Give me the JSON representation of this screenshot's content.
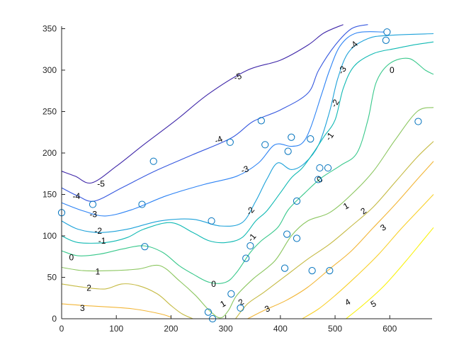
{
  "chart_data": {
    "type": "contour",
    "title": "",
    "xlabel": "",
    "ylabel": "",
    "xlim": [
      0,
      680
    ],
    "ylim": [
      0,
      355
    ],
    "xticks": [
      0,
      100,
      200,
      300,
      400,
      500,
      600
    ],
    "yticks": [
      0,
      50,
      100,
      150,
      200,
      250,
      300,
      350
    ],
    "grid": false,
    "box": "left-bottom",
    "marker_color": "#0072bd",
    "levels": [
      {
        "level": -5,
        "label": "-5",
        "color": "#3e26a8",
        "points": [
          [
            0,
            178
          ],
          [
            25,
            172
          ],
          [
            55,
            164
          ],
          [
            100,
            184
          ],
          [
            150,
            210
          ],
          [
            210,
            240
          ],
          [
            270,
            272
          ],
          [
            340,
            300
          ],
          [
            400,
            312
          ],
          [
            450,
            330
          ],
          [
            480,
            345
          ],
          [
            515,
            355
          ]
        ]
      },
      {
        "level": -4,
        "label": "-4",
        "color": "#3658df",
        "points": [
          [
            0,
            158
          ],
          [
            30,
            148
          ],
          [
            60,
            142
          ],
          [
            110,
            158
          ],
          [
            170,
            178
          ],
          [
            240,
            198
          ],
          [
            310,
            218
          ],
          [
            350,
            238
          ],
          [
            400,
            252
          ],
          [
            450,
            272
          ],
          [
            470,
            300
          ],
          [
            500,
            330
          ],
          [
            530,
            350
          ],
          [
            560,
            355
          ]
        ]
      },
      {
        "level": -3,
        "label": "-3",
        "color": "#2c82f4",
        "points": [
          [
            0,
            140
          ],
          [
            40,
            130
          ],
          [
            80,
            124
          ],
          [
            130,
            132
          ],
          [
            190,
            148
          ],
          [
            260,
            162
          ],
          [
            320,
            172
          ],
          [
            360,
            188
          ],
          [
            390,
            210
          ],
          [
            420,
            208
          ],
          [
            440,
            212
          ],
          [
            455,
            230
          ],
          [
            475,
            270
          ],
          [
            490,
            300
          ],
          [
            510,
            330
          ],
          [
            540,
            345
          ],
          [
            590,
            346
          ]
        ]
      },
      {
        "level": -2,
        "label": "-2",
        "color": "#1ca1d9",
        "points": [
          [
            0,
            118
          ],
          [
            30,
            108
          ],
          [
            70,
            104
          ],
          [
            120,
            108
          ],
          [
            180,
            118
          ],
          [
            240,
            120
          ],
          [
            290,
            112
          ],
          [
            330,
            116
          ],
          [
            355,
            142
          ],
          [
            375,
            168
          ],
          [
            395,
            188
          ],
          [
            420,
            180
          ],
          [
            445,
            188
          ],
          [
            470,
            210
          ],
          [
            490,
            250
          ],
          [
            505,
            290
          ],
          [
            525,
            322
          ],
          [
            560,
            338
          ],
          [
            600,
            342
          ],
          [
            680,
            344
          ]
        ]
      },
      {
        "level": -1,
        "label": "-1",
        "color": "#10b9b3",
        "points": [
          [
            0,
            100
          ],
          [
            30,
            92
          ],
          [
            80,
            92
          ],
          [
            120,
            98
          ],
          [
            150,
            108
          ],
          [
            200,
            116
          ],
          [
            240,
            104
          ],
          [
            270,
            94
          ],
          [
            300,
            92
          ],
          [
            330,
            98
          ],
          [
            355,
            118
          ],
          [
            375,
            130
          ],
          [
            400,
            152
          ],
          [
            420,
            170
          ],
          [
            440,
            182
          ],
          [
            460,
            200
          ],
          [
            480,
            220
          ],
          [
            500,
            240
          ],
          [
            515,
            278
          ],
          [
            535,
            305
          ],
          [
            570,
            320
          ],
          [
            610,
            326
          ],
          [
            640,
            330
          ],
          [
            680,
            334
          ]
        ]
      },
      {
        "level": 0,
        "label": "0",
        "color": "#38c88b",
        "points": [
          [
            0,
            82
          ],
          [
            30,
            76
          ],
          [
            70,
            78
          ],
          [
            110,
            84
          ],
          [
            150,
            88
          ],
          [
            185,
            80
          ],
          [
            215,
            64
          ],
          [
            240,
            54
          ],
          [
            270,
            44
          ],
          [
            300,
            44
          ],
          [
            320,
            56
          ],
          [
            345,
            80
          ],
          [
            365,
            94
          ],
          [
            395,
            110
          ],
          [
            415,
            132
          ],
          [
            445,
            152
          ],
          [
            475,
            170
          ],
          [
            510,
            185
          ],
          [
            540,
            200
          ],
          [
            560,
            240
          ],
          [
            575,
            285
          ],
          [
            600,
            308
          ],
          [
            635,
            314
          ],
          [
            665,
            300
          ],
          [
            680,
            295
          ]
        ]
      },
      {
        "level": 1,
        "label": "1",
        "color": "#8bc65f",
        "points": [
          [
            0,
            62
          ],
          [
            40,
            58
          ],
          [
            90,
            58
          ],
          [
            140,
            60
          ],
          [
            180,
            64
          ],
          [
            215,
            46
          ],
          [
            245,
            28
          ],
          [
            270,
            10
          ],
          [
            290,
            1
          ],
          [
            305,
            10
          ],
          [
            320,
            28
          ],
          [
            350,
            48
          ],
          [
            390,
            70
          ],
          [
            420,
            100
          ],
          [
            450,
            118
          ],
          [
            490,
            128
          ],
          [
            530,
            150
          ],
          [
            570,
            178
          ],
          [
            610,
            216
          ],
          [
            650,
            250
          ],
          [
            680,
            255
          ]
        ]
      },
      {
        "level": 2,
        "label": "2",
        "color": "#c5ba43",
        "points": [
          [
            0,
            42
          ],
          [
            40,
            38
          ],
          [
            80,
            36
          ],
          [
            110,
            42
          ],
          [
            140,
            40
          ],
          [
            175,
            30
          ],
          [
            200,
            16
          ],
          [
            220,
            6
          ],
          [
            240,
            0
          ]
        ]
      },
      {
        "level": 2,
        "label": "",
        "color": "#c5ba43",
        "points": [
          [
            318,
            0
          ],
          [
            340,
            18
          ],
          [
            370,
            32
          ],
          [
            410,
            52
          ],
          [
            450,
            72
          ],
          [
            490,
            90
          ],
          [
            530,
            112
          ],
          [
            570,
            135
          ],
          [
            610,
            165
          ],
          [
            650,
            195
          ],
          [
            680,
            214
          ]
        ]
      },
      {
        "level": 3,
        "label": "3",
        "color": "#f2b638",
        "points": [
          [
            0,
            18
          ],
          [
            40,
            16
          ],
          [
            90,
            14
          ],
          [
            130,
            12
          ],
          [
            180,
            6
          ],
          [
            200,
            2
          ]
        ]
      },
      {
        "level": 3,
        "label": "",
        "color": "#f2b638",
        "points": [
          [
            340,
            0
          ],
          [
            370,
            10
          ],
          [
            410,
            22
          ],
          [
            450,
            38
          ],
          [
            490,
            60
          ],
          [
            530,
            82
          ],
          [
            570,
            110
          ],
          [
            610,
            138
          ],
          [
            650,
            168
          ],
          [
            680,
            190
          ]
        ]
      },
      {
        "level": 4,
        "label": "4",
        "color": "#f8d02a",
        "points": [
          [
            440,
            0
          ],
          [
            470,
            12
          ],
          [
            500,
            28
          ],
          [
            540,
            52
          ],
          [
            580,
            78
          ],
          [
            620,
            108
          ],
          [
            660,
            136
          ],
          [
            680,
            150
          ]
        ]
      },
      {
        "level": 5,
        "label": "5",
        "color": "#f9f20e",
        "points": [
          [
            520,
            0
          ],
          [
            550,
            16
          ],
          [
            590,
            40
          ],
          [
            630,
            70
          ],
          [
            660,
            94
          ],
          [
            680,
            110
          ]
        ]
      }
    ],
    "contour_labels": [
      {
        "text": "-5",
        "x": 72,
        "y": 163,
        "angle": 0
      },
      {
        "text": "-5",
        "x": 322,
        "y": 292,
        "angle": -22
      },
      {
        "text": "-4",
        "x": 27,
        "y": 148,
        "angle": 0
      },
      {
        "text": "-4",
        "x": 287,
        "y": 216,
        "angle": -22
      },
      {
        "text": "-4",
        "x": 534,
        "y": 330,
        "angle": -45
      },
      {
        "text": "-3",
        "x": 58,
        "y": 126,
        "angle": 0
      },
      {
        "text": "-3",
        "x": 335,
        "y": 180,
        "angle": -20
      },
      {
        "text": "-3",
        "x": 513,
        "y": 300,
        "angle": -55
      },
      {
        "text": "-2",
        "x": 67,
        "y": 106,
        "angle": 0
      },
      {
        "text": "-2",
        "x": 345,
        "y": 130,
        "angle": -50
      },
      {
        "text": "-2",
        "x": 500,
        "y": 260,
        "angle": -60
      },
      {
        "text": "-1",
        "x": 74,
        "y": 94,
        "angle": 0
      },
      {
        "text": "-1",
        "x": 348,
        "y": 98,
        "angle": -50
      },
      {
        "text": "-1",
        "x": 490,
        "y": 220,
        "angle": -55
      },
      {
        "text": "0",
        "x": 18,
        "y": 74,
        "angle": 0
      },
      {
        "text": "0",
        "x": 278,
        "y": 42,
        "angle": 0
      },
      {
        "text": "0",
        "x": 472,
        "y": 168,
        "angle": -40
      },
      {
        "text": "0",
        "x": 604,
        "y": 300,
        "angle": 0
      },
      {
        "text": "1",
        "x": 66,
        "y": 57,
        "angle": 0
      },
      {
        "text": "1",
        "x": 295,
        "y": 18,
        "angle": -30
      },
      {
        "text": "1",
        "x": 520,
        "y": 136,
        "angle": -30
      },
      {
        "text": "2",
        "x": 50,
        "y": 37,
        "angle": 0
      },
      {
        "text": "2",
        "x": 328,
        "y": 20,
        "angle": -30
      },
      {
        "text": "2",
        "x": 552,
        "y": 130,
        "angle": -35
      },
      {
        "text": "3",
        "x": 38,
        "y": 13,
        "angle": 0
      },
      {
        "text": "3",
        "x": 376,
        "y": 12,
        "angle": -25
      },
      {
        "text": "3",
        "x": 588,
        "y": 110,
        "angle": -35
      },
      {
        "text": "4",
        "x": 523,
        "y": 20,
        "angle": -30
      },
      {
        "text": "5",
        "x": 570,
        "y": 18,
        "angle": -30
      }
    ],
    "scatter": [
      [
        595,
        346
      ],
      [
        593,
        336
      ],
      [
        652,
        238
      ],
      [
        365,
        239
      ],
      [
        308,
        213
      ],
      [
        372,
        210
      ],
      [
        420,
        219
      ],
      [
        455,
        217
      ],
      [
        414,
        202
      ],
      [
        168,
        190
      ],
      [
        472,
        182
      ],
      [
        487,
        182
      ],
      [
        469,
        168
      ],
      [
        0,
        128
      ],
      [
        57,
        138
      ],
      [
        147,
        138
      ],
      [
        430,
        142
      ],
      [
        274,
        118
      ],
      [
        412,
        102
      ],
      [
        430,
        97
      ],
      [
        152,
        87
      ],
      [
        345,
        88
      ],
      [
        337,
        73
      ],
      [
        408,
        61
      ],
      [
        458,
        58
      ],
      [
        490,
        58
      ],
      [
        310,
        30
      ],
      [
        327,
        13
      ],
      [
        268,
        8
      ],
      [
        276,
        0
      ]
    ]
  }
}
